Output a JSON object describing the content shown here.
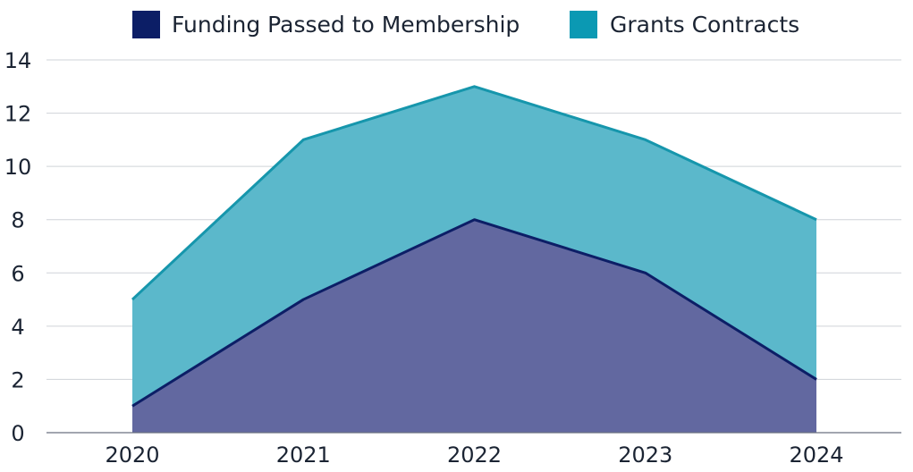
{
  "chart_data": {
    "type": "area",
    "stacked": true,
    "categories": [
      "2020",
      "2021",
      "2022",
      "2023",
      "2024"
    ],
    "series": [
      {
        "name": "Funding Passed to Membership",
        "values": [
          1,
          5,
          8,
          6,
          2
        ],
        "fill_color": "#6268a0",
        "line_color": "#0c1e66",
        "legend_color": "#0c1e66"
      },
      {
        "name": "Grants Contracts",
        "values": [
          4,
          6,
          5,
          5,
          6
        ],
        "fill_color": "#5bb8cb",
        "line_color": "#1696ac",
        "legend_color": "#0b99b3"
      }
    ],
    "title": "",
    "xlabel": "",
    "ylabel": "",
    "ylim": [
      0,
      14
    ],
    "yticks": [
      "0",
      "2",
      "4",
      "6",
      "8",
      "10",
      "12",
      "14"
    ],
    "grid": true,
    "legend_position": "top"
  }
}
